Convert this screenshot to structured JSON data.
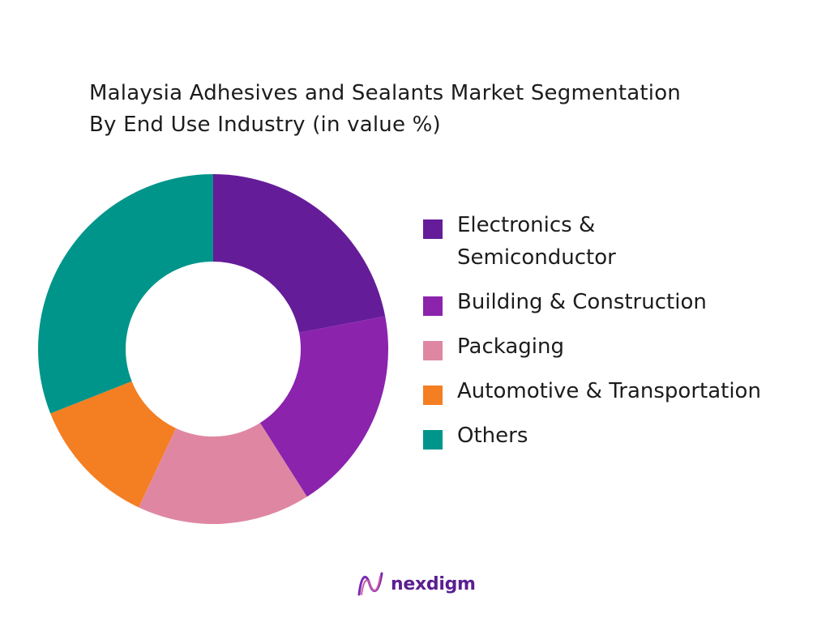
{
  "title_line1": "Malaysia Adhesives and Sealants Market Segmentation",
  "title_line2": "By End Use Industry (in value %)",
  "brand": "nexdigm",
  "chart_data": {
    "type": "pie",
    "donut": true,
    "title": "Malaysia Adhesives and Sealants Market Segmentation By End Use Industry (in value %)",
    "categories": [
      "Electronics & Semiconductor",
      "Building & Construction",
      "Packaging",
      "Automotive & Transportation",
      "Others"
    ],
    "values": [
      22,
      19,
      16,
      12,
      31
    ],
    "colors": [
      "#651c99",
      "#8b23ad",
      "#df87a2",
      "#f47e22",
      "#00958a"
    ],
    "legend_position": "right"
  }
}
